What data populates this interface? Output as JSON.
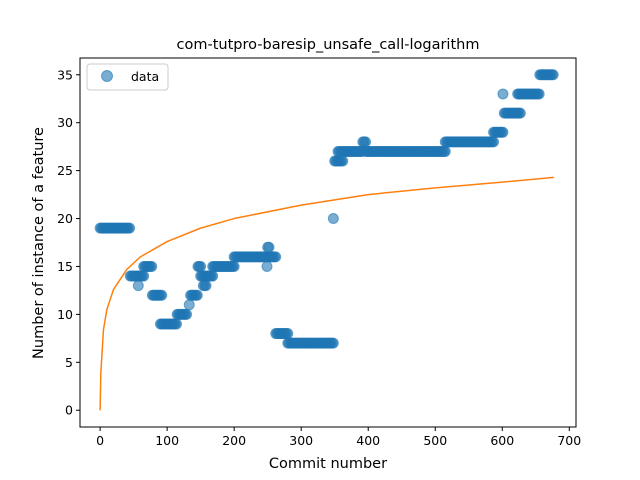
{
  "chart_data": {
    "type": "scatter",
    "title": "com-tutpro-baresip_unsafe_call-logarithm",
    "xlabel": "Commit number",
    "ylabel": "Number of instance of a feature",
    "xlim": [
      -30,
      710
    ],
    "ylim": [
      -1.75,
      36.75
    ],
    "xticks": [
      0,
      100,
      200,
      300,
      400,
      500,
      600,
      700
    ],
    "yticks": [
      0,
      5,
      10,
      15,
      20,
      25,
      30,
      35
    ],
    "grid": false,
    "legend": {
      "placement": "top-left",
      "entries": [
        "data"
      ]
    },
    "colors": {
      "points": "#1f77b4",
      "fit": "#ff7f0e"
    },
    "series": [
      {
        "name": "data",
        "kind": "scatter",
        "segments": [
          {
            "x_start": 0,
            "x_end": 45,
            "y": 19
          },
          {
            "x_start": 45,
            "x_end": 65,
            "y": 14
          },
          {
            "x_start": 57,
            "x_end": 57,
            "y": 13
          },
          {
            "x_start": 65,
            "x_end": 78,
            "y": 15
          },
          {
            "x_start": 78,
            "x_end": 92,
            "y": 12
          },
          {
            "x_start": 90,
            "x_end": 115,
            "y": 9
          },
          {
            "x_start": 115,
            "x_end": 130,
            "y": 10
          },
          {
            "x_start": 133,
            "x_end": 133,
            "y": 11
          },
          {
            "x_start": 135,
            "x_end": 145,
            "y": 12
          },
          {
            "x_start": 146,
            "x_end": 150,
            "y": 15
          },
          {
            "x_start": 150,
            "x_end": 168,
            "y": 14
          },
          {
            "x_start": 154,
            "x_end": 158,
            "y": 13
          },
          {
            "x_start": 168,
            "x_end": 200,
            "y": 15
          },
          {
            "x_start": 200,
            "x_end": 262,
            "y": 16
          },
          {
            "x_start": 249,
            "x_end": 249,
            "y": 15
          },
          {
            "x_start": 250,
            "x_end": 253,
            "y": 17
          },
          {
            "x_start": 262,
            "x_end": 280,
            "y": 8
          },
          {
            "x_start": 280,
            "x_end": 348,
            "y": 7
          },
          {
            "x_start": 348,
            "x_end": 348,
            "y": 20
          },
          {
            "x_start": 350,
            "x_end": 362,
            "y": 26
          },
          {
            "x_start": 355,
            "x_end": 392,
            "y": 27
          },
          {
            "x_start": 392,
            "x_end": 397,
            "y": 28
          },
          {
            "x_start": 397,
            "x_end": 515,
            "y": 27
          },
          {
            "x_start": 515,
            "x_end": 587,
            "y": 28
          },
          {
            "x_start": 587,
            "x_end": 602,
            "y": 29
          },
          {
            "x_start": 601,
            "x_end": 601,
            "y": 33
          },
          {
            "x_start": 603,
            "x_end": 628,
            "y": 31
          },
          {
            "x_start": 623,
            "x_end": 656,
            "y": 33
          },
          {
            "x_start": 656,
            "x_end": 677,
            "y": 35
          }
        ]
      },
      {
        "name": "",
        "kind": "line",
        "model": "logarithmic",
        "x_range": [
          0,
          677
        ],
        "samples": [
          [
            0,
            0
          ],
          [
            1,
            3.8
          ],
          [
            5,
            8.4
          ],
          [
            10,
            10.5
          ],
          [
            20,
            12.6
          ],
          [
            40,
            14.7
          ],
          [
            60,
            16.0
          ],
          [
            100,
            17.6
          ],
          [
            150,
            19.0
          ],
          [
            200,
            20.0
          ],
          [
            300,
            21.4
          ],
          [
            400,
            22.5
          ],
          [
            500,
            23.2
          ],
          [
            600,
            23.8
          ],
          [
            677,
            24.3
          ]
        ]
      }
    ]
  }
}
